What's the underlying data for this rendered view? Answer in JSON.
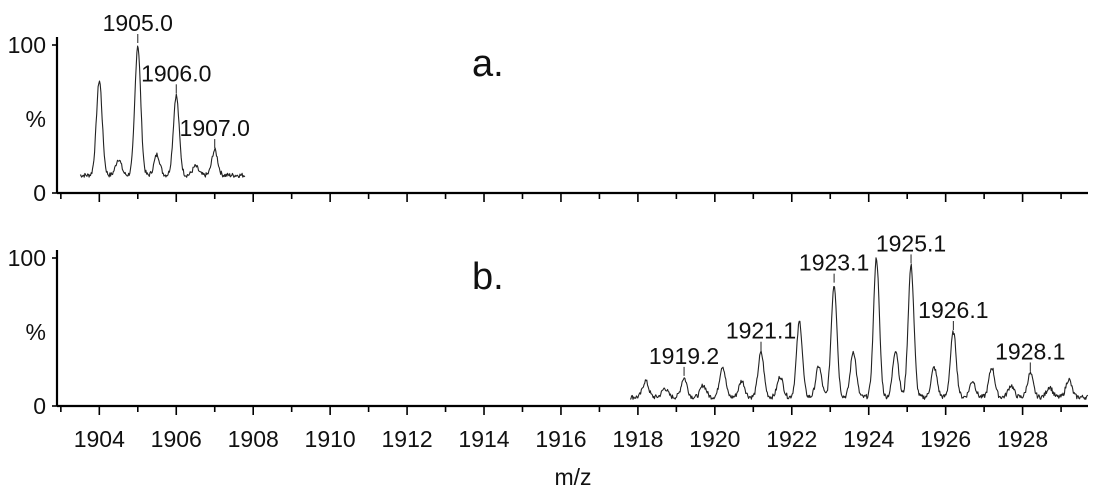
{
  "chart_data": {
    "type": "line",
    "xlabel": "m/z",
    "x_ticks": [
      1904,
      1906,
      1908,
      1910,
      1912,
      1914,
      1916,
      1918,
      1920,
      1922,
      1924,
      1926,
      1928
    ],
    "xlim": [
      1902.9,
      1929.7
    ],
    "ylim": [
      0,
      100
    ],
    "y_tick_labels": [
      "100",
      "%",
      "0"
    ],
    "panels": [
      {
        "id": "a",
        "label": "a.",
        "baseline": 12,
        "x_range": [
          1903.5,
          1907.8
        ],
        "peaks": [
          {
            "x": 1904.0,
            "y": 76
          },
          {
            "x": 1904.5,
            "y": 23
          },
          {
            "x": 1905.0,
            "y": 100
          },
          {
            "x": 1905.5,
            "y": 26
          },
          {
            "x": 1906.0,
            "y": 66
          },
          {
            "x": 1906.5,
            "y": 18
          },
          {
            "x": 1907.0,
            "y": 29
          }
        ],
        "annotations": [
          {
            "text": "1905.0",
            "x": 1905.0,
            "y": 100
          },
          {
            "text": "1906.0",
            "x": 1906.0,
            "y": 66
          },
          {
            "text": "1907.0",
            "x": 1907.0,
            "y": 29
          }
        ]
      },
      {
        "id": "b",
        "label": "b.",
        "baseline": 6,
        "x_range": [
          1917.8,
          1929.7
        ],
        "peaks": [
          {
            "x": 1918.2,
            "y": 17
          },
          {
            "x": 1918.7,
            "y": 12
          },
          {
            "x": 1919.2,
            "y": 19
          },
          {
            "x": 1919.7,
            "y": 14
          },
          {
            "x": 1920.2,
            "y": 27
          },
          {
            "x": 1920.7,
            "y": 17
          },
          {
            "x": 1921.2,
            "y": 36
          },
          {
            "x": 1921.7,
            "y": 20
          },
          {
            "x": 1922.2,
            "y": 57
          },
          {
            "x": 1922.7,
            "y": 27
          },
          {
            "x": 1923.1,
            "y": 82
          },
          {
            "x": 1923.6,
            "y": 37
          },
          {
            "x": 1924.2,
            "y": 100
          },
          {
            "x": 1924.7,
            "y": 38
          },
          {
            "x": 1925.1,
            "y": 95
          },
          {
            "x": 1925.7,
            "y": 26
          },
          {
            "x": 1926.2,
            "y": 50
          },
          {
            "x": 1926.7,
            "y": 17
          },
          {
            "x": 1927.2,
            "y": 26
          },
          {
            "x": 1927.7,
            "y": 14
          },
          {
            "x": 1928.2,
            "y": 22
          },
          {
            "x": 1928.7,
            "y": 13
          },
          {
            "x": 1929.2,
            "y": 18
          }
        ],
        "annotations": [
          {
            "text": "1919.2",
            "x": 1919.2,
            "y": 19
          },
          {
            "text": "1921.1",
            "x": 1921.2,
            "y": 36
          },
          {
            "text": "1923.1",
            "x": 1923.1,
            "y": 82
          },
          {
            "text": "1925.1",
            "x": 1925.1,
            "y": 95
          },
          {
            "text": "1926.1",
            "x": 1926.2,
            "y": 50
          },
          {
            "text": "1928.1",
            "x": 1928.2,
            "y": 22
          }
        ]
      }
    ]
  }
}
